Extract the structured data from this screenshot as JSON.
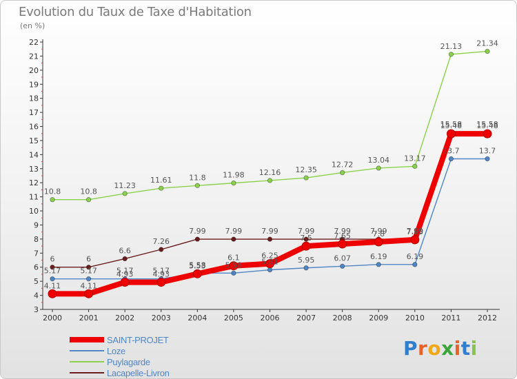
{
  "title": "Evolution du Taux de Taxe d'Habitation",
  "unit": "(en %)",
  "logo": {
    "letters": [
      "P",
      "r",
      "o",
      "x",
      "i",
      "t",
      "i"
    ],
    "colors": [
      "#2f7fd1",
      "#e6632a",
      "#f2a71b",
      "#3aa63a",
      "#e6632a",
      "#2f7fd1",
      "#8bc34a"
    ]
  },
  "chart_data": {
    "type": "line",
    "title": "Evolution du Taux de Taxe d'Habitation",
    "ylabel": "(en %)",
    "xlabel": "",
    "ylim": [
      3,
      22
    ],
    "grid": false,
    "legend": "bottom-left",
    "x": [
      "2000",
      "2001",
      "2002",
      "2003",
      "2004",
      "2005",
      "2006",
      "2007",
      "2008",
      "2009",
      "2010",
      "2011",
      "2012"
    ],
    "series": [
      {
        "name": "SAINT-PROJET",
        "color": "#ee0000",
        "values": [
          4.11,
          4.11,
          4.93,
          4.93,
          5.53,
          6.1,
          6.25,
          7.5,
          7.65,
          7.8,
          7.95,
          15.48,
          15.48
        ],
        "labels": [
          "4.11",
          "4.11",
          "4.93",
          "4.93",
          "5.53",
          "6.1",
          "6.25",
          "7.5",
          "7.65",
          "7.8",
          "7.95",
          "15.48",
          "15.48"
        ]
      },
      {
        "name": "Loze",
        "color": "#4f86c6",
        "values": [
          5.17,
          5.17,
          5.17,
          5.17,
          5.58,
          5.58,
          5.81,
          5.95,
          6.07,
          6.19,
          6.19,
          13.7,
          13.7
        ],
        "labels": [
          "5.17",
          "5.17",
          "5.17",
          "5.17",
          "5.58",
          "5.58",
          "5.81",
          "5.95",
          "6.07",
          "6.19",
          "6.19",
          "13.7",
          "13.7"
        ]
      },
      {
        "name": "Puylagarde",
        "color": "#8ad24a",
        "values": [
          10.8,
          10.8,
          11.23,
          11.61,
          11.8,
          11.98,
          12.16,
          12.35,
          12.72,
          13.04,
          13.17,
          21.13,
          21.34
        ],
        "labels": [
          "10.8",
          "10.8",
          "11.23",
          "11.61",
          "11.8",
          "11.98",
          "12.16",
          "12.35",
          "12.72",
          "13.04",
          "13.17",
          "21.13",
          "21.34"
        ]
      },
      {
        "name": "Lacapelle-Livron",
        "color": "#6b1c1c",
        "values": [
          6,
          6,
          6.6,
          7.26,
          7.99,
          7.99,
          7.99,
          7.99,
          7.99,
          7.99,
          7.99,
          15.58,
          15.58
        ],
        "labels": [
          "6",
          "6",
          "6.6",
          "7.26",
          "7.99",
          "7.99",
          "7.99",
          "7.99",
          "7.99",
          "7.99",
          "7.99",
          "15.58",
          "15.58"
        ]
      }
    ]
  }
}
